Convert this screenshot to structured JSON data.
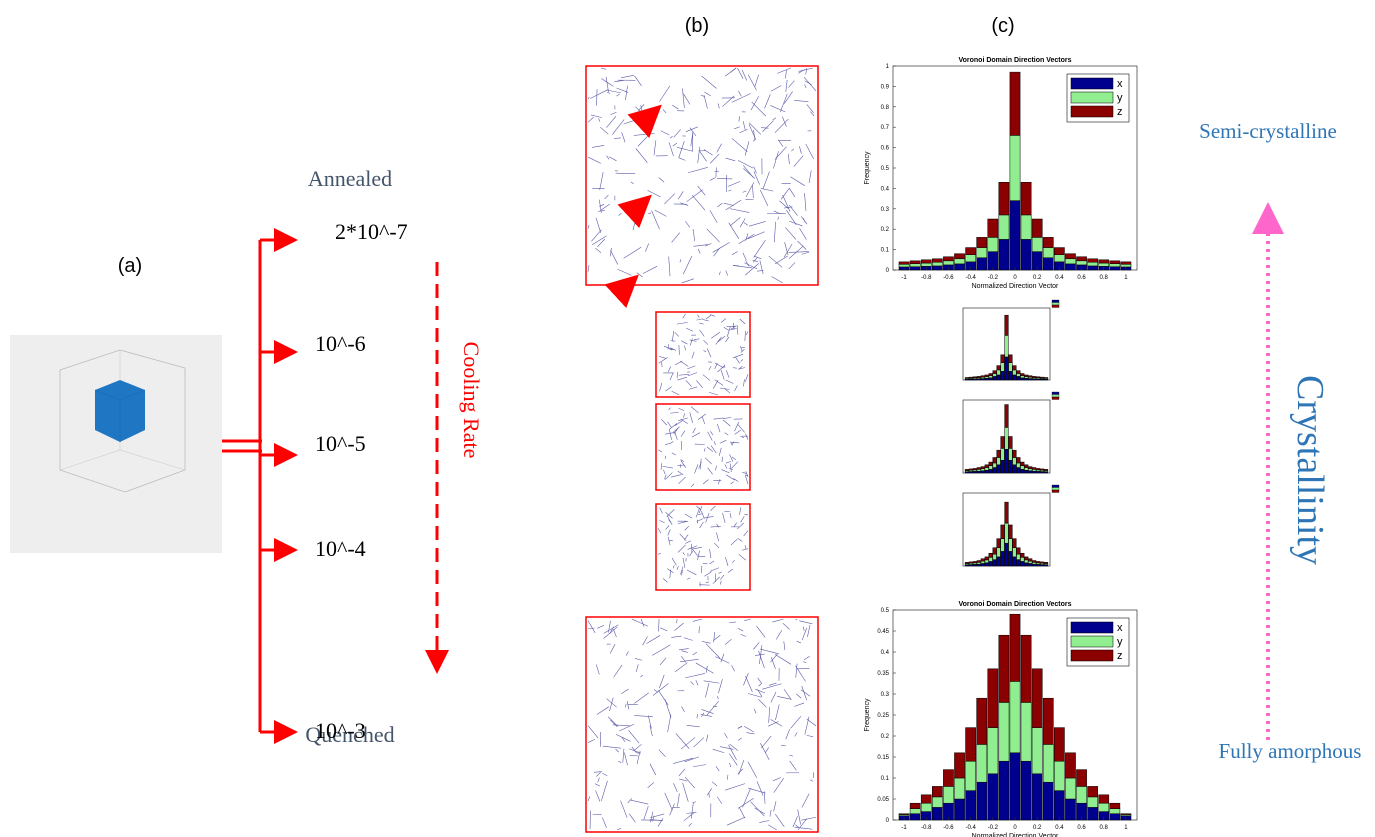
{
  "panel_labels": {
    "a": "(a)",
    "b": "(b)",
    "c": "(c)"
  },
  "cooling": {
    "annealed": "Annealed",
    "quenched": "Quenched",
    "rates": [
      "2*10^-7",
      "10^-6",
      "10^-5",
      "10^-4",
      "10^-3"
    ],
    "axis_label": "Cooling Rate"
  },
  "crystallinity": {
    "top": "Semi-crystalline",
    "bottom": "Fully amorphous",
    "axis_label": "Crystallinity"
  },
  "chart_data": [
    {
      "type": "bar",
      "stacked": true,
      "title": "Voronoi Domain Direction Vectors",
      "xlabel": "Normalized Direction Vector",
      "ylabel": "Frequency",
      "x": [
        -1,
        -0.9,
        -0.8,
        -0.7,
        -0.6,
        -0.5,
        -0.4,
        -0.3,
        -0.2,
        -0.1,
        0,
        0.1,
        0.2,
        0.3,
        0.4,
        0.5,
        0.6,
        0.7,
        0.8,
        0.9,
        1
      ],
      "xlim": [
        -1.1,
        1.1
      ],
      "ylim": [
        0,
        1
      ],
      "xticks": [
        -1,
        -0.8,
        -0.6,
        -0.4,
        -0.2,
        0,
        0.2,
        0.4,
        0.6,
        0.8,
        1
      ],
      "yticks": [
        0,
        0.1,
        0.2,
        0.3,
        0.4,
        0.5,
        0.6,
        0.7,
        0.8,
        0.9,
        1
      ],
      "legend": "upper right",
      "series": [
        {
          "name": "x",
          "color": "#00008f",
          "values": [
            0.015,
            0.016,
            0.018,
            0.02,
            0.025,
            0.03,
            0.04,
            0.06,
            0.09,
            0.15,
            0.34,
            0.15,
            0.09,
            0.06,
            0.04,
            0.03,
            0.025,
            0.02,
            0.018,
            0.016,
            0.015
          ]
        },
        {
          "name": "y",
          "color": "#90ee90",
          "values": [
            0.013,
            0.015,
            0.016,
            0.018,
            0.02,
            0.025,
            0.035,
            0.05,
            0.07,
            0.12,
            0.32,
            0.12,
            0.07,
            0.05,
            0.035,
            0.025,
            0.02,
            0.018,
            0.016,
            0.015,
            0.013
          ]
        },
        {
          "name": "z",
          "color": "#8b0000",
          "values": [
            0.012,
            0.014,
            0.016,
            0.017,
            0.02,
            0.025,
            0.035,
            0.05,
            0.09,
            0.16,
            0.31,
            0.16,
            0.09,
            0.05,
            0.035,
            0.025,
            0.02,
            0.017,
            0.016,
            0.014,
            0.012
          ]
        }
      ]
    },
    {
      "type": "bar",
      "stacked": true,
      "x": [
        -1,
        -0.9,
        -0.8,
        -0.7,
        -0.6,
        -0.5,
        -0.4,
        -0.3,
        -0.2,
        -0.1,
        0,
        0.1,
        0.2,
        0.3,
        0.4,
        0.5,
        0.6,
        0.7,
        0.8,
        0.9,
        1
      ],
      "xlim": [
        -1.1,
        1.1
      ],
      "ylim": [
        0,
        1
      ],
      "series": [
        {
          "color": "#00008f",
          "values": [
            0.012,
            0.014,
            0.016,
            0.018,
            0.02,
            0.025,
            0.03,
            0.05,
            0.07,
            0.12,
            0.32,
            0.12,
            0.07,
            0.05,
            0.03,
            0.025,
            0.02,
            0.018,
            0.016,
            0.014,
            0.012
          ]
        },
        {
          "color": "#90ee90",
          "values": [
            0.012,
            0.013,
            0.015,
            0.016,
            0.02,
            0.023,
            0.03,
            0.04,
            0.07,
            0.12,
            0.3,
            0.12,
            0.07,
            0.04,
            0.03,
            0.023,
            0.02,
            0.016,
            0.015,
            0.013,
            0.012
          ]
        },
        {
          "color": "#8b0000",
          "values": [
            0.011,
            0.013,
            0.014,
            0.016,
            0.02,
            0.022,
            0.03,
            0.04,
            0.06,
            0.11,
            0.28,
            0.11,
            0.06,
            0.04,
            0.03,
            0.022,
            0.02,
            0.016,
            0.014,
            0.013,
            0.011
          ]
        }
      ]
    },
    {
      "type": "bar",
      "stacked": true,
      "x": [
        -1,
        -0.9,
        -0.8,
        -0.7,
        -0.6,
        -0.5,
        -0.4,
        -0.3,
        -0.2,
        -0.1,
        0,
        0.1,
        0.2,
        0.3,
        0.4,
        0.5,
        0.6,
        0.7,
        0.8,
        0.9,
        1
      ],
      "xlim": [
        -1.1,
        1.1
      ],
      "ylim": [
        0,
        0.8
      ],
      "series": [
        {
          "color": "#00008f",
          "values": [
            0.014,
            0.016,
            0.018,
            0.02,
            0.025,
            0.03,
            0.04,
            0.06,
            0.09,
            0.14,
            0.26,
            0.14,
            0.09,
            0.06,
            0.04,
            0.03,
            0.025,
            0.02,
            0.018,
            0.016,
            0.014
          ]
        },
        {
          "color": "#90ee90",
          "values": [
            0.013,
            0.015,
            0.016,
            0.02,
            0.022,
            0.03,
            0.04,
            0.05,
            0.08,
            0.13,
            0.24,
            0.13,
            0.08,
            0.05,
            0.04,
            0.03,
            0.022,
            0.02,
            0.016,
            0.015,
            0.013
          ]
        },
        {
          "color": "#8b0000",
          "values": [
            0.013,
            0.014,
            0.016,
            0.02,
            0.023,
            0.03,
            0.04,
            0.06,
            0.08,
            0.13,
            0.25,
            0.13,
            0.08,
            0.06,
            0.04,
            0.03,
            0.023,
            0.02,
            0.016,
            0.014,
            0.013
          ]
        }
      ]
    },
    {
      "type": "bar",
      "stacked": true,
      "x": [
        -1,
        -0.9,
        -0.8,
        -0.7,
        -0.6,
        -0.5,
        -0.4,
        -0.3,
        -0.2,
        -0.1,
        0,
        0.1,
        0.2,
        0.3,
        0.4,
        0.5,
        0.6,
        0.7,
        0.8,
        0.9,
        1
      ],
      "xlim": [
        -1.1,
        1.1
      ],
      "ylim": [
        0,
        0.8
      ],
      "series": [
        {
          "color": "#00008f",
          "values": [
            0.014,
            0.016,
            0.018,
            0.02,
            0.028,
            0.035,
            0.05,
            0.07,
            0.1,
            0.16,
            0.25,
            0.16,
            0.1,
            0.07,
            0.05,
            0.035,
            0.028,
            0.02,
            0.018,
            0.016,
            0.014
          ]
        },
        {
          "color": "#90ee90",
          "values": [
            0.013,
            0.015,
            0.016,
            0.02,
            0.026,
            0.032,
            0.045,
            0.06,
            0.1,
            0.14,
            0.22,
            0.14,
            0.1,
            0.06,
            0.045,
            0.032,
            0.026,
            0.02,
            0.016,
            0.015,
            0.013
          ]
        },
        {
          "color": "#8b0000",
          "values": [
            0.013,
            0.014,
            0.016,
            0.02,
            0.026,
            0.033,
            0.045,
            0.07,
            0.1,
            0.15,
            0.23,
            0.15,
            0.1,
            0.07,
            0.045,
            0.033,
            0.026,
            0.02,
            0.016,
            0.014,
            0.013
          ]
        }
      ]
    },
    {
      "type": "bar",
      "stacked": true,
      "title": "Voronoi Domain Direction Vectors",
      "xlabel": "Normalized Direction Vector",
      "ylabel": "Frequency",
      "x": [
        -1,
        -0.9,
        -0.8,
        -0.7,
        -0.6,
        -0.5,
        -0.4,
        -0.3,
        -0.2,
        -0.1,
        0,
        0.1,
        0.2,
        0.3,
        0.4,
        0.5,
        0.6,
        0.7,
        0.8,
        0.9,
        1
      ],
      "xlim": [
        -1.1,
        1.1
      ],
      "ylim": [
        0,
        0.5
      ],
      "xticks": [
        -1,
        -0.8,
        -0.6,
        -0.4,
        -0.2,
        0,
        0.2,
        0.4,
        0.6,
        0.8,
        1
      ],
      "yticks": [
        0,
        0.05,
        0.1,
        0.15,
        0.2,
        0.25,
        0.3,
        0.35,
        0.4,
        0.45,
        0.5
      ],
      "legend": "upper right",
      "series": [
        {
          "name": "x",
          "color": "#00008f",
          "values": [
            0.01,
            0.015,
            0.02,
            0.03,
            0.04,
            0.05,
            0.07,
            0.09,
            0.11,
            0.14,
            0.16,
            0.14,
            0.11,
            0.09,
            0.07,
            0.05,
            0.04,
            0.03,
            0.02,
            0.015,
            0.01
          ]
        },
        {
          "name": "y",
          "color": "#90ee90",
          "values": [
            0.003,
            0.012,
            0.02,
            0.025,
            0.04,
            0.05,
            0.07,
            0.09,
            0.11,
            0.14,
            0.17,
            0.14,
            0.11,
            0.09,
            0.07,
            0.05,
            0.04,
            0.025,
            0.02,
            0.012,
            0.003
          ]
        },
        {
          "name": "z",
          "color": "#8b0000",
          "values": [
            0.002,
            0.013,
            0.02,
            0.025,
            0.04,
            0.06,
            0.08,
            0.11,
            0.14,
            0.16,
            0.16,
            0.16,
            0.14,
            0.11,
            0.08,
            0.06,
            0.04,
            0.025,
            0.02,
            0.013,
            0.002
          ]
        }
      ]
    }
  ]
}
